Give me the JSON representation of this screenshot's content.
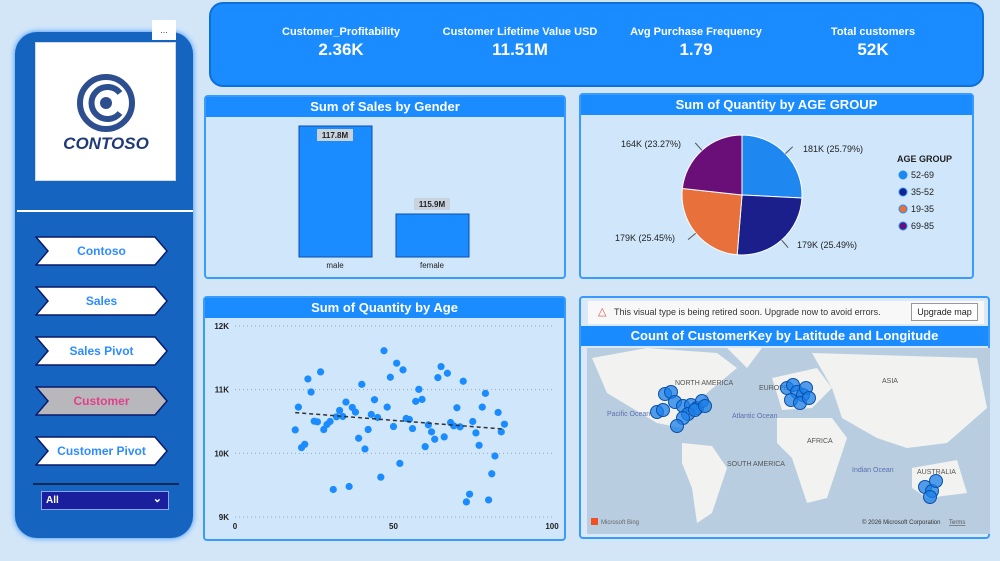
{
  "sidebar": {
    "logo_text": "CONTOSO",
    "more_label": "...",
    "nav": [
      {
        "label": "Contoso",
        "active": false
      },
      {
        "label": "Sales",
        "active": false
      },
      {
        "label": "Sales Pivot",
        "active": false
      },
      {
        "label": "Customer",
        "active": true
      },
      {
        "label": "Customer Pivot",
        "active": false
      }
    ],
    "filter_value": "All"
  },
  "kpis": [
    {
      "label": "Customer_Profitability",
      "value": "2.36K"
    },
    {
      "label": "Customer Lifetime Value USD",
      "value": "11.51M"
    },
    {
      "label": "Avg Purchase Frequency",
      "value": "1.79"
    },
    {
      "label": "Total customers",
      "value": "52K"
    }
  ],
  "gender_chart": {
    "title": "Sum of Sales by Gender",
    "categories": [
      "male",
      "female"
    ],
    "values": [
      117.8,
      115.9
    ],
    "labels": [
      "117.8M",
      "115.9M"
    ]
  },
  "pie_chart": {
    "title": "Sum of Quantity by AGE GROUP",
    "legend_title": "AGE GROUP",
    "slices": [
      {
        "name": "52-69",
        "label": "181K (25.79%)",
        "value": 25.79,
        "color": "#1e88f0"
      },
      {
        "name": "35-52",
        "label": "179K (25.49%)",
        "value": 25.49,
        "color": "#1a1f8c"
      },
      {
        "name": "19-35",
        "label": "179K (25.45%)",
        "value": 25.45,
        "color": "#e8703a"
      },
      {
        "name": "69-85",
        "label": "164K (23.27%)",
        "value": 23.27,
        "color": "#6a0f78"
      }
    ]
  },
  "chart_data": {
    "type": "scatter",
    "title": "Sum of Quantity by Age",
    "xlim": [
      0,
      100
    ],
    "ylim": [
      9000,
      12000
    ],
    "xticks": [
      "0",
      "50",
      "100"
    ],
    "yticks": [
      "12K",
      "11K",
      "10K",
      "9K"
    ],
    "grid": true,
    "trendline": [
      [
        19,
        10640
      ],
      [
        85,
        10380
      ]
    ],
    "points": [
      [
        19,
        10368
      ],
      [
        20,
        10726
      ],
      [
        21,
        10090
      ],
      [
        22,
        10142
      ],
      [
        23,
        11168
      ],
      [
        24,
        10963
      ],
      [
        25,
        10505
      ],
      [
        26,
        10495
      ],
      [
        27,
        11279
      ],
      [
        28,
        10374
      ],
      [
        29,
        10453
      ],
      [
        30,
        10500
      ],
      [
        31,
        9432
      ],
      [
        32,
        10574
      ],
      [
        33,
        10674
      ],
      [
        34,
        10579
      ],
      [
        35,
        10805
      ],
      [
        36,
        9479
      ],
      [
        37,
        10721
      ],
      [
        38,
        10647
      ],
      [
        39,
        10237
      ],
      [
        40,
        11084
      ],
      [
        41,
        10068
      ],
      [
        42,
        10374
      ],
      [
        43,
        10611
      ],
      [
        44,
        10842
      ],
      [
        45,
        10563
      ],
      [
        46,
        9626
      ],
      [
        47,
        11611
      ],
      [
        48,
        10726
      ],
      [
        49,
        11195
      ],
      [
        50,
        10421
      ],
      [
        51,
        11416
      ],
      [
        52,
        9842
      ],
      [
        53,
        11311
      ],
      [
        54,
        10547
      ],
      [
        55,
        10532
      ],
      [
        56,
        10389
      ],
      [
        57,
        10816
      ],
      [
        58,
        11005
      ],
      [
        59,
        10847
      ],
      [
        60,
        10105
      ],
      [
        61,
        10447
      ],
      [
        62,
        10337
      ],
      [
        63,
        10221
      ],
      [
        64,
        11189
      ],
      [
        65,
        11363
      ],
      [
        66,
        10258
      ],
      [
        67,
        11258
      ],
      [
        68,
        10484
      ],
      [
        69,
        10432
      ],
      [
        70,
        10716
      ],
      [
        71,
        10416
      ],
      [
        72,
        11132
      ],
      [
        73,
        9237
      ],
      [
        74,
        9358
      ],
      [
        75,
        10500
      ],
      [
        76,
        10321
      ],
      [
        77,
        10126
      ],
      [
        78,
        10726
      ],
      [
        79,
        10942
      ],
      [
        80,
        9268
      ],
      [
        81,
        9679
      ],
      [
        82,
        9958
      ],
      [
        83,
        10642
      ],
      [
        84,
        10337
      ],
      [
        85,
        10458
      ]
    ]
  },
  "map": {
    "warning": "This visual type is being retired soon. Upgrade now to avoid errors.",
    "upgrade_label": "Upgrade map",
    "title": "Count of CustomerKey by Latitude and Longitude",
    "labels": [
      "NORTH AMERICA",
      "EUROPE",
      "ASIA",
      "AFRICA",
      "SOUTH AMERICA",
      "AUSTRALIA",
      "Pacific Ocean",
      "Atlantic Ocean",
      "Indian Ocean"
    ],
    "attribution": "Microsoft Bing",
    "copyright": "© 2026 Microsoft Corporation",
    "terms": "Terms"
  }
}
